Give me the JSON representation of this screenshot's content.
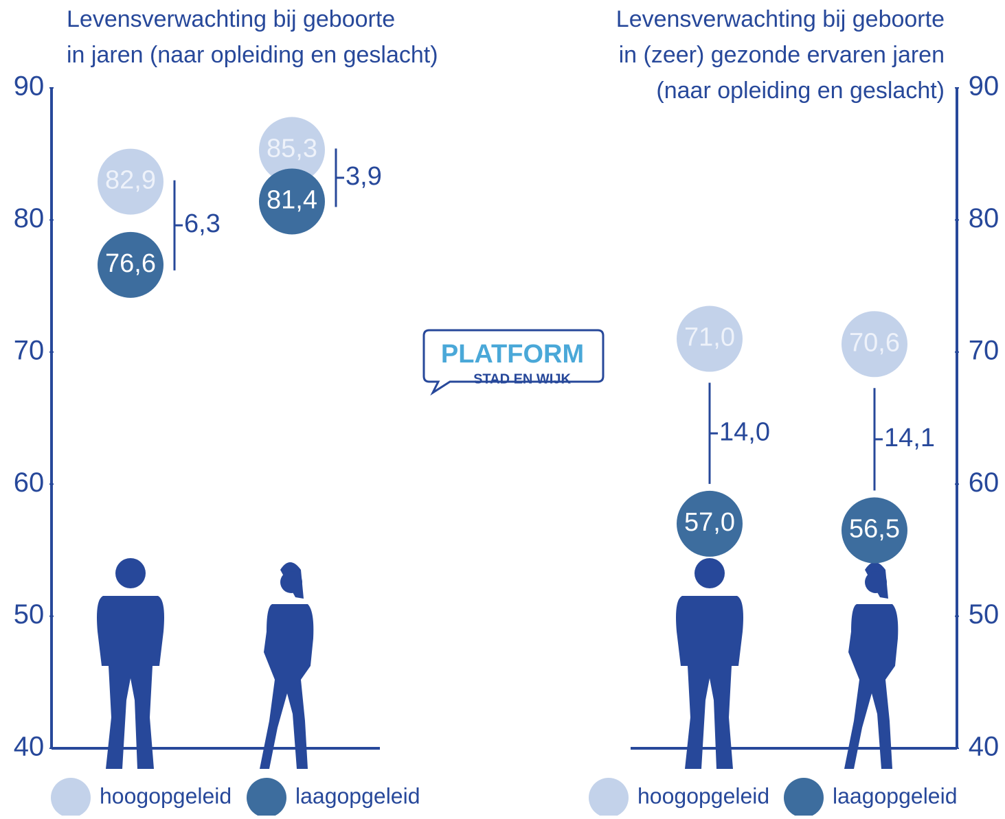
{
  "chart_data": [
    {
      "type": "dot",
      "title": [
        "Levensverwachting bij geboorte",
        "in jaren (naar opleiding en geslacht)"
      ],
      "categories": [
        null,
        null
      ],
      "series": [
        {
          "name": "hoogopgeleid",
          "color": "#c3d2ea",
          "values": [
            82.9,
            85.3
          ],
          "value_labels": [
            "82,9",
            "85,3"
          ]
        },
        {
          "name": "laagopgeleid",
          "color": "#3d6d9e",
          "values": [
            76.6,
            81.4
          ],
          "value_labels": [
            "76,6",
            "81,4"
          ]
        }
      ],
      "differences": {
        "values": [
          6.3,
          3.9
        ],
        "value_labels": [
          "6,3",
          "3,9"
        ]
      },
      "ylim": [
        40,
        90
      ],
      "yticks": [
        40,
        50,
        60,
        70,
        80,
        90
      ],
      "axis_side": "left"
    },
    {
      "type": "dot",
      "title": [
        "Levensverwachting bij geboorte",
        "in (zeer) gezonde ervaren jaren",
        "(naar opleiding en geslacht)"
      ],
      "categories": [
        null,
        null
      ],
      "series": [
        {
          "name": "hoogopgeleid",
          "color": "#c3d2ea",
          "values": [
            71.0,
            70.6
          ],
          "value_labels": [
            "71,0",
            "70,6"
          ]
        },
        {
          "name": "laagopgeleid",
          "color": "#3d6d9e",
          "values": [
            57.0,
            56.5
          ],
          "value_labels": [
            "57,0",
            "56,5"
          ]
        }
      ],
      "differences": {
        "values": [
          14.0,
          14.1
        ],
        "value_labels": [
          "14,0",
          "14,1"
        ]
      },
      "ylim": [
        40,
        90
      ],
      "yticks": [
        40,
        50,
        60,
        70,
        80,
        90
      ],
      "axis_side": "right"
    }
  ],
  "logo": {
    "top": "PLATFORM",
    "bottom": "STAD EN WIJK"
  }
}
